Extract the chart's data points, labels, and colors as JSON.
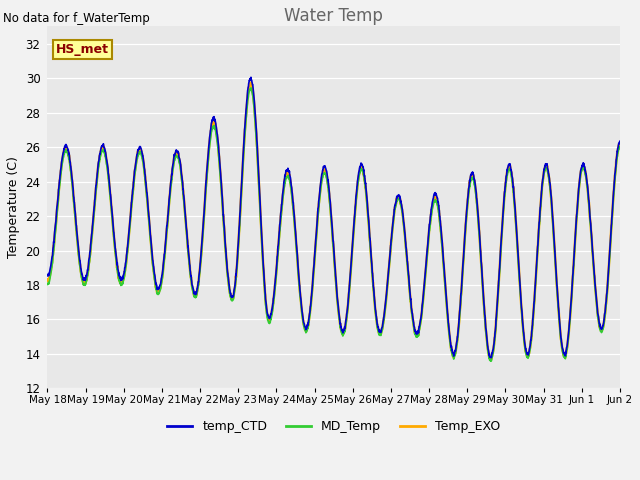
{
  "title": "Water Temp",
  "ylabel": "Temperature (C)",
  "ylim": [
    12,
    33
  ],
  "yticks": [
    12,
    14,
    16,
    18,
    20,
    22,
    24,
    26,
    28,
    30,
    32
  ],
  "annotation_text": "No data for f_WaterTemp",
  "hs_met_label": "HS_met",
  "bg_color": "#e8e8e8",
  "line_colors": {
    "temp_CTD": "#0000cc",
    "MD_Temp": "#33cc33",
    "Temp_EXO": "#ffaa00"
  },
  "line_widths": {
    "temp_CTD": 1.2,
    "MD_Temp": 1.2,
    "Temp_EXO": 1.8
  },
  "xticklabels": [
    "May 18",
    "May 19",
    "May 20",
    "May 21",
    "May 22",
    "May 23",
    "May 24",
    "May 25",
    "May 26",
    "May 27",
    "May 28",
    "May 29",
    "May 30",
    "May 31",
    "Jun 1",
    "Jun 2"
  ],
  "legend_entries": [
    "temp_CTD",
    "MD_Temp",
    "Temp_EXO"
  ],
  "legend_colors": [
    "#0000cc",
    "#33cc33",
    "#ffaa00"
  ],
  "day_peaks_ctd": [
    18.5,
    26.1,
    18.3,
    26.1,
    18.3,
    26.0,
    17.8,
    25.8,
    17.5,
    27.7,
    17.3,
    30.0,
    16.1,
    24.7,
    15.5,
    24.9,
    15.3,
    25.0,
    15.3,
    23.2,
    15.2,
    23.3,
    14.0,
    24.5,
    13.8,
    25.0,
    14.0,
    25.0,
    14.0,
    25.0,
    15.5,
    26.3
  ],
  "day_peaks_md": [
    18.0,
    25.8,
    18.0,
    25.8,
    18.0,
    25.7,
    17.5,
    25.5,
    17.3,
    27.2,
    17.1,
    29.4,
    15.8,
    24.3,
    15.3,
    24.5,
    15.1,
    24.7,
    15.1,
    23.0,
    15.0,
    22.9,
    13.8,
    24.2,
    13.6,
    24.7,
    13.8,
    24.8,
    13.8,
    24.8,
    15.3,
    26.0
  ],
  "day_peaks_exo": [
    18.2,
    26.0,
    18.1,
    26.0,
    18.1,
    25.9,
    17.6,
    25.7,
    17.4,
    27.5,
    17.2,
    29.7,
    16.0,
    24.5,
    15.4,
    24.7,
    15.2,
    24.8,
    15.2,
    23.1,
    15.1,
    23.1,
    13.9,
    24.4,
    13.7,
    24.9,
    13.9,
    24.9,
    13.9,
    24.9,
    15.4,
    26.2
  ]
}
